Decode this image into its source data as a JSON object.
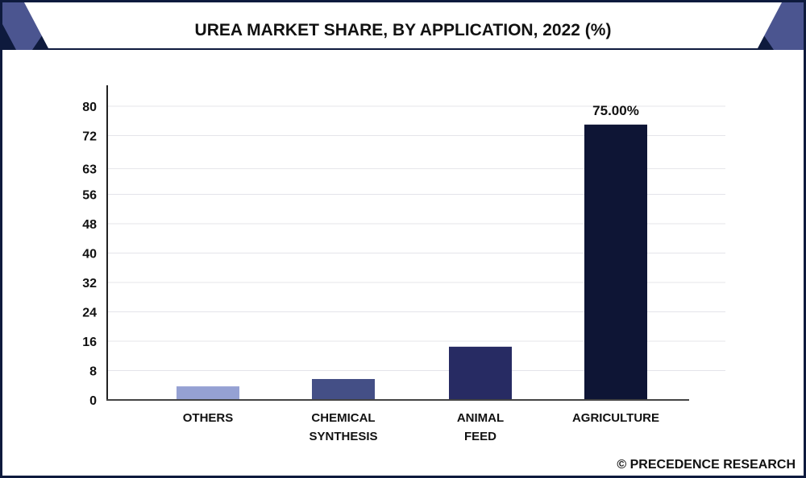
{
  "chart_data": {
    "type": "bar",
    "title": "UREA MARKET SHARE, BY APPLICATION, 2022 (%)",
    "categories": [
      "OTHERS",
      "CHEMICAL SYNTHESIS",
      "ANIMAL FEED",
      "AGRICULTURE"
    ],
    "category_lines": [
      [
        "OTHERS"
      ],
      [
        "CHEMICAL",
        "SYNTHESIS"
      ],
      [
        "ANIMAL",
        "FEED"
      ],
      [
        "AGRICULTURE"
      ]
    ],
    "values": [
      3.7,
      5.7,
      14.5,
      75.0
    ],
    "data_labels": [
      "",
      "",
      "",
      "75.00%"
    ],
    "colors": [
      "#95a1d3",
      "#444f86",
      "#272b63",
      "#0e1535"
    ],
    "yticks": [
      0,
      8,
      16,
      24,
      32,
      40,
      48,
      56,
      63,
      72,
      80
    ],
    "ylim": [
      0,
      80
    ],
    "xlabel": "",
    "ylabel": "",
    "grid": true,
    "legend": "none"
  },
  "footer": {
    "copyright": "© PRECEDENCE RESEARCH"
  },
  "colors": {
    "frame": "#0e1a3d",
    "accent": "#4b5590"
  }
}
